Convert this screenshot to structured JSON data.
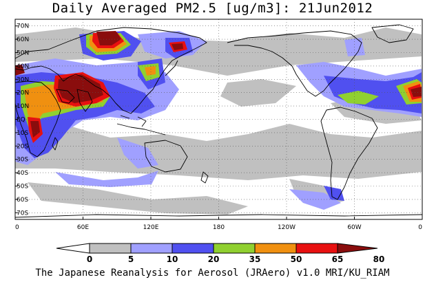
{
  "figure": {
    "title": "Daily Averaged PM2.5 [ug/m3]: 21Jun2012",
    "credit": "The Japanese Reanalysis for Aerosol (JRAero) v1.0 MRI/KU_RIAM"
  },
  "map": {
    "projection": "equirectangular, Pacific-centered",
    "lon_range": [
      0,
      360
    ],
    "lat_range": [
      -75,
      75
    ],
    "grid": "dotted",
    "lat_ticks": [
      {
        "lat": 70,
        "label": "70N"
      },
      {
        "lat": 60,
        "label": "60N"
      },
      {
        "lat": 50,
        "label": "50N"
      },
      {
        "lat": 40,
        "label": "40N"
      },
      {
        "lat": 30,
        "label": "30N"
      },
      {
        "lat": 20,
        "label": "20N"
      },
      {
        "lat": 10,
        "label": "10N"
      },
      {
        "lat": 0,
        "label": "EQ"
      },
      {
        "lat": -10,
        "label": "10S"
      },
      {
        "lat": -20,
        "label": "20S"
      },
      {
        "lat": -30,
        "label": "30S"
      },
      {
        "lat": -40,
        "label": "40S"
      },
      {
        "lat": -50,
        "label": "50S"
      },
      {
        "lat": -60,
        "label": "60S"
      },
      {
        "lat": -70,
        "label": "70S"
      }
    ],
    "lon_ticks": [
      {
        "lon": 0,
        "label": "0"
      },
      {
        "lon": 60,
        "label": "60E"
      },
      {
        "lon": 120,
        "label": "120E"
      },
      {
        "lon": 180,
        "label": "180"
      },
      {
        "lon": 240,
        "label": "120W"
      },
      {
        "lon": 300,
        "label": "60W"
      },
      {
        "lon": 360,
        "label": "0"
      }
    ]
  },
  "colorbar": {
    "levels": [
      "0",
      "5",
      "10",
      "20",
      "35",
      "50",
      "65",
      "80"
    ],
    "colors": [
      "#ffffff",
      "#c0c0c0",
      "#a0a0ff",
      "#5050f0",
      "#90d030",
      "#f09010",
      "#e81010",
      "#8a0d0d"
    ]
  }
}
